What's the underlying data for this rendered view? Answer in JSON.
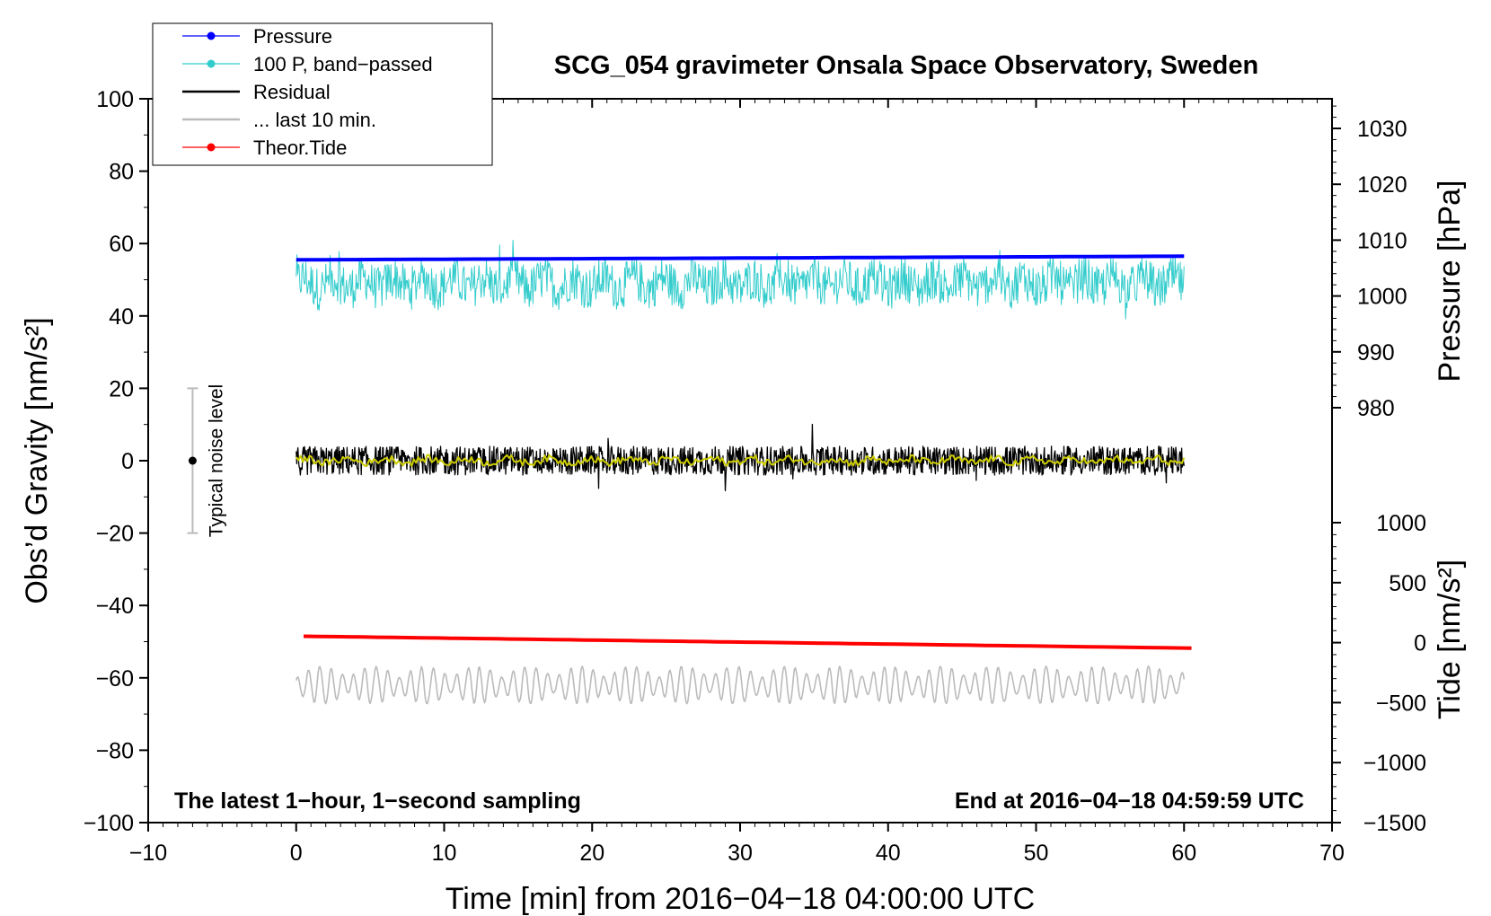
{
  "chart_data": {
    "type": "line",
    "title": "SCG_054 gravimeter Onsala Space Observatory, Sweden",
    "xlabel": "Time [min] from 2016−04−18 04:00:00 UTC",
    "ylabel_left": "Obs’d Gravity [nm/s²]",
    "ylabel_right_top": "Pressure [hPa]",
    "ylabel_right_bottom": "Tide [nm/s²]",
    "xlim": [
      -10,
      70
    ],
    "ylim": [
      -100,
      100
    ],
    "pressure_axis_range": [
      980,
      1030
    ],
    "tide_axis_range": [
      -1500,
      1000
    ],
    "x_ticks": [
      "−10",
      "0",
      "10",
      "20",
      "30",
      "40",
      "50",
      "60",
      "70"
    ],
    "y_ticks": [
      "100",
      "80",
      "60",
      "40",
      "20",
      "0",
      "−20",
      "−40",
      "−60",
      "−80",
      "−100"
    ],
    "pressure_ticks": [
      "1030",
      "1020",
      "1010",
      "1000",
      "990",
      "980"
    ],
    "tide_ticks": [
      "1000",
      "500",
      "0",
      "−500",
      "−1000",
      "−1500"
    ],
    "legend": [
      {
        "label": "Pressure",
        "color": "#0000ff",
        "marker": true
      },
      {
        "label": "100 P, band−passed",
        "color": "#33cccc",
        "marker": true
      },
      {
        "label": "Residual",
        "color": "#000000",
        "marker": false
      },
      {
        "label": "... last 10 min.",
        "color": "#bbbbbb",
        "marker": false
      },
      {
        "label": "Theor.Tide",
        "color": "#ff0000",
        "marker": true
      }
    ],
    "series": [
      {
        "name": "Pressure",
        "color": "#0000ff",
        "x_range": [
          0,
          60
        ],
        "plot_value_range": [
          55.5,
          56.5
        ],
        "pressure_hPa_range": [
          1006.0,
          1006.5
        ]
      },
      {
        "name": "100 P, band−passed",
        "color": "#33cccc",
        "x_range": [
          0,
          60
        ],
        "center": 49,
        "amplitude": 6
      },
      {
        "name": "Residual",
        "color": "#000000",
        "x_range": [
          0,
          60
        ],
        "center": 0,
        "amplitude": 4
      },
      {
        "name": "Residual (smoothed)",
        "color": "#cccc00",
        "x_range": [
          0,
          60
        ],
        "center": 0,
        "amplitude": 1
      },
      {
        "name": "... last 10 min.",
        "color": "#bbbbbb",
        "x_range": [
          0,
          60
        ],
        "center": -62,
        "amplitude": 4
      },
      {
        "name": "Theor.Tide",
        "color": "#ff0000",
        "x_range": [
          0.5,
          60.5
        ],
        "plot_value_range": [
          -48.5,
          -51.8
        ],
        "tide_nm_s2_range": [
          40,
          -20
        ]
      }
    ],
    "noise_bar": {
      "x": -7,
      "center": 0,
      "low": -20,
      "high": 20,
      "label": "Typical noise level"
    },
    "annotations": {
      "bottom_left": "The latest 1−hour, 1−second sampling",
      "bottom_right": "End at 2016−04−18 04:59:59 UTC"
    }
  }
}
